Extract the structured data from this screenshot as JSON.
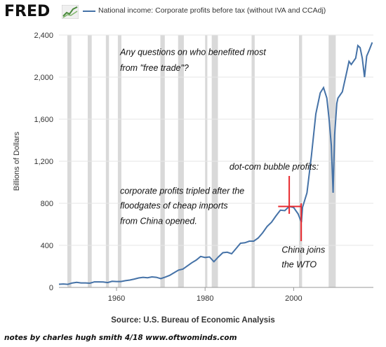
{
  "header": {
    "logo": "FRED",
    "logo_icon": "fred-trend-icon",
    "legend_label": "National income: Corporate profits before tax (without IVA and CCAdj)"
  },
  "colors": {
    "line": "#4572a7",
    "recession": "#d9d9d9",
    "marker": "#e8282d",
    "grid": "#e6e6e6"
  },
  "chart_data": {
    "type": "line",
    "title": "",
    "xlabel": "",
    "ylabel": "Billions of Dollars",
    "xlim": [
      1947,
      2018
    ],
    "ylim": [
      0,
      2400
    ],
    "x_ticks": [
      1960,
      1980,
      2000
    ],
    "x_tick_labels": [
      "1960",
      "1980",
      "2000"
    ],
    "y_ticks": [
      0,
      400,
      800,
      1200,
      1600,
      2000,
      2400
    ],
    "y_tick_labels": [
      "0",
      "400",
      "800",
      "1,200",
      "1,600",
      "2,000",
      "2,400"
    ],
    "grid": "horizontal",
    "recessions": [
      [
        1948.9,
        1949.8
      ],
      [
        1953.5,
        1954.4
      ],
      [
        1957.6,
        1958.3
      ],
      [
        1960.3,
        1961.1
      ],
      [
        1969.9,
        1970.9
      ],
      [
        1973.9,
        1975.2
      ],
      [
        1980.0,
        1980.5
      ],
      [
        1981.5,
        1982.9
      ],
      [
        1990.5,
        1991.2
      ],
      [
        2001.2,
        2001.9
      ],
      [
        2007.9,
        2009.5
      ]
    ],
    "series": [
      {
        "x": [
          1947,
          1948,
          1949,
          1950,
          1951,
          1952,
          1953,
          1954,
          1955,
          1956,
          1957,
          1958,
          1959,
          1960,
          1961,
          1962,
          1963,
          1964,
          1965,
          1966,
          1967,
          1968,
          1969,
          1970,
          1971,
          1972,
          1973,
          1974,
          1975,
          1976,
          1977,
          1978,
          1979,
          1980,
          1981,
          1982,
          1983,
          1984,
          1985,
          1986,
          1987,
          1988,
          1989,
          1990,
          1991,
          1992,
          1993,
          1994,
          1995,
          1996,
          1997,
          1998,
          1999,
          2000,
          2001,
          2001.75,
          2002,
          2003,
          2004,
          2005,
          2006,
          2006.75,
          2007.5,
          2008,
          2008.5,
          2008.9,
          2009.25,
          2009.75,
          2010,
          2011,
          2012,
          2012.5,
          2013,
          2014,
          2014.5,
          2015,
          2015.5,
          2016,
          2016.5,
          2017,
          2017.75
        ],
        "values": [
          30,
          33,
          29,
          42,
          48,
          43,
          43,
          40,
          53,
          53,
          52,
          46,
          58,
          56,
          56,
          64,
          70,
          79,
          90,
          96,
          92,
          100,
          96,
          84,
          98,
          115,
          140,
          165,
          175,
          205,
          235,
          260,
          295,
          285,
          290,
          245,
          290,
          330,
          335,
          320,
          370,
          420,
          425,
          440,
          440,
          470,
          520,
          580,
          620,
          680,
          735,
          730,
          770,
          760,
          700,
          620,
          760,
          900,
          1250,
          1650,
          1850,
          1900,
          1800,
          1600,
          1350,
          900,
          1450,
          1750,
          1800,
          1860,
          2050,
          2150,
          2120,
          2180,
          2300,
          2280,
          2180,
          2000,
          2200,
          2250,
          2330
        ]
      }
    ],
    "annotations": [
      {
        "text": "Any questions on who benefited most",
        "x": 1960.8,
        "y": 2210
      },
      {
        "text": "from \"free trade\"?",
        "x": 1960.8,
        "y": 2060
      },
      {
        "text": "dot-com bubble profits:",
        "x": 1985.5,
        "y": 1120
      },
      {
        "text": "corporate profits tripled after the",
        "x": 1960.8,
        "y": 890
      },
      {
        "text": "floodgates of cheap imports",
        "x": 1960.8,
        "y": 750
      },
      {
        "text": "from China opened.",
        "x": 1960.8,
        "y": 605
      },
      {
        "text": "China joins",
        "x": 1997.3,
        "y": 330
      },
      {
        "text": "the WTO",
        "x": 1997.3,
        "y": 190
      }
    ]
  },
  "footer": {
    "source": "Source: U.S. Bureau of Economic Analysis",
    "notes": "notes by charles hugh smith 4/18  www.oftwominds.com"
  }
}
